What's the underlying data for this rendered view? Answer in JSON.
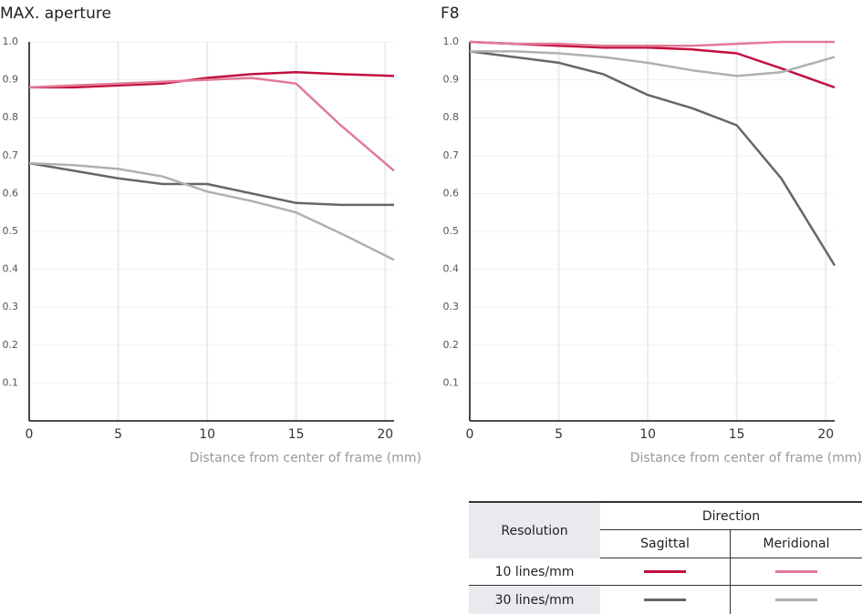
{
  "chart_data": [
    {
      "type": "line",
      "title": "MAX. aperture",
      "xlabel": "Distance from center of frame (mm)",
      "x": [
        0,
        2.5,
        5,
        7.5,
        10,
        12.5,
        15,
        17.5,
        20.5
      ],
      "series": [
        {
          "color": "#c0103f",
          "values": [
            0.88,
            0.88,
            0.885,
            0.89,
            0.905,
            0.915,
            0.92,
            0.915,
            0.91
          ]
        },
        {
          "color": "#e27a98",
          "values": [
            0.88,
            0.885,
            0.89,
            0.895,
            0.9,
            0.905,
            0.89,
            0.78,
            0.66
          ]
        },
        {
          "color": "#666666",
          "values": [
            0.68,
            0.66,
            0.64,
            0.625,
            0.625,
            0.6,
            0.575,
            0.57,
            0.57
          ]
        },
        {
          "color": "#b0b0b0",
          "values": [
            0.68,
            0.675,
            0.665,
            0.645,
            0.605,
            0.58,
            0.55,
            0.495,
            0.425
          ]
        }
      ],
      "xlim": [
        0,
        20.5
      ],
      "ylim": [
        0,
        1
      ],
      "xticks": [
        0,
        5,
        10,
        15,
        20
      ],
      "yticks": [
        0.1,
        0.2,
        0.3,
        0.4,
        0.5,
        0.6,
        0.7,
        0.8,
        0.9,
        {
          "value": 1,
          "label": "1.0"
        }
      ],
      "grid": true
    },
    {
      "type": "line",
      "title": "F8",
      "xlabel": "Distance from center of frame (mm)",
      "x": [
        0,
        2.5,
        5,
        7.5,
        10,
        12.5,
        15,
        17.5,
        20.5
      ],
      "series": [
        {
          "color": "#c0103f",
          "values": [
            1.0,
            0.995,
            0.99,
            0.985,
            0.985,
            0.98,
            0.97,
            0.93,
            0.88
          ]
        },
        {
          "color": "#e27a98",
          "values": [
            1.0,
            0.995,
            0.995,
            0.99,
            0.99,
            0.99,
            0.995,
            1.0,
            1.0
          ]
        },
        {
          "color": "#666666",
          "values": [
            0.975,
            0.96,
            0.945,
            0.915,
            0.86,
            0.825,
            0.78,
            0.64,
            0.41
          ]
        },
        {
          "color": "#b0b0b0",
          "values": [
            0.975,
            0.975,
            0.97,
            0.96,
            0.945,
            0.925,
            0.91,
            0.92,
            0.96
          ]
        }
      ],
      "xlim": [
        0,
        20.5
      ],
      "ylim": [
        0,
        1
      ],
      "xticks": [
        0,
        5,
        10,
        15,
        20
      ],
      "yticks": [
        0.1,
        0.2,
        0.3,
        0.4,
        0.5,
        0.6,
        0.7,
        0.8,
        0.9,
        {
          "value": 1,
          "label": "1.0"
        }
      ],
      "grid": true
    }
  ],
  "legend_table": {
    "row_header": "Resolution",
    "column_header": "Direction",
    "directions": [
      "Sagittal",
      "Meridional"
    ],
    "resolutions": [
      "10 lines/mm",
      "30 lines/mm"
    ]
  }
}
